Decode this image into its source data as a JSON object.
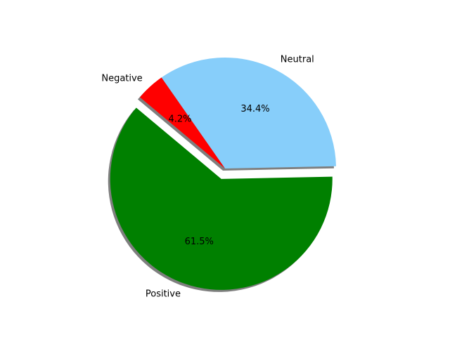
{
  "chart_data": {
    "type": "pie",
    "title": "",
    "slices": [
      {
        "label": "Positive",
        "value": 61.5,
        "pct_label": "61.5%",
        "color": "#008000",
        "exploded": true
      },
      {
        "label": "Neutral",
        "value": 34.4,
        "pct_label": "34.4%",
        "color": "#87CEFA",
        "exploded": false
      },
      {
        "label": "Negative",
        "value": 4.2,
        "pct_label": "4.2%",
        "color": "#FF0000",
        "exploded": false
      }
    ],
    "shadow": true,
    "start_angle_deg": 140,
    "direction": "counterclockwise",
    "legend": "none"
  }
}
